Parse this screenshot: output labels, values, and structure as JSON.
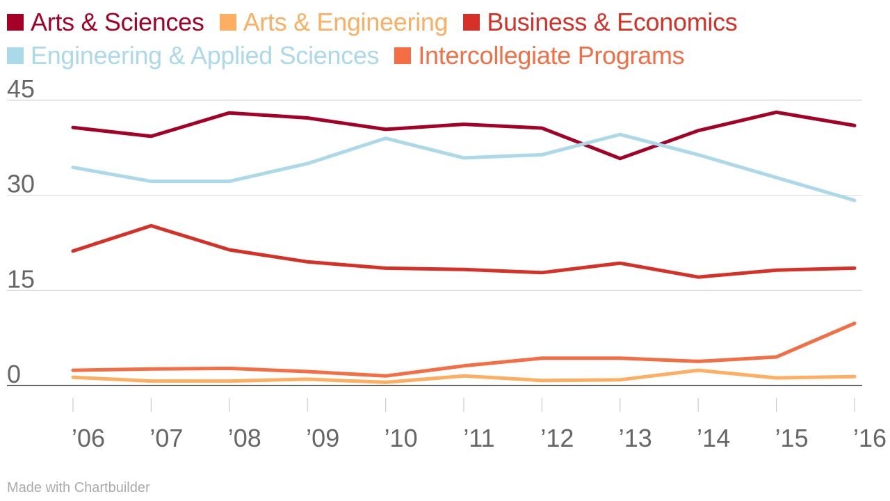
{
  "chart_data": {
    "type": "line",
    "title": "",
    "xlabel": "",
    "ylabel": "",
    "x": [
      "’06",
      "’07",
      "’08",
      "’09",
      "’10",
      "’11",
      "’12",
      "’13",
      "’14",
      "’15",
      "’16"
    ],
    "ylim": [
      0,
      45
    ],
    "yticks": [
      "0",
      "15",
      "30",
      "45"
    ],
    "grid": true,
    "legend_position": "top",
    "series": [
      {
        "name": "Arts & Sciences",
        "color": "#a50026",
        "values": [
          40.7,
          39.3,
          43.0,
          42.2,
          40.4,
          41.2,
          40.6,
          35.8,
          40.2,
          43.1,
          41.0
        ]
      },
      {
        "name": "Arts & Engineering",
        "color": "#fdae61",
        "values": [
          1.3,
          0.7,
          0.7,
          1.0,
          0.5,
          1.5,
          0.8,
          0.9,
          2.4,
          1.2,
          1.4
        ]
      },
      {
        "name": "Business & Economics",
        "color": "#d73027",
        "values": [
          21.2,
          25.2,
          21.4,
          19.5,
          18.5,
          18.3,
          17.8,
          19.3,
          17.1,
          18.2,
          18.5
        ]
      },
      {
        "name": "Engineering & Applied Sciences",
        "color": "#abd9e9",
        "values": [
          34.4,
          32.2,
          32.2,
          35.0,
          39.0,
          35.9,
          36.4,
          39.6,
          36.4,
          32.8,
          29.2
        ]
      },
      {
        "name": "Intercollegiate Programs",
        "color": "#f46d43",
        "values": [
          2.4,
          2.6,
          2.7,
          2.2,
          1.5,
          3.1,
          4.3,
          4.3,
          3.8,
          4.5,
          9.8
        ]
      }
    ]
  },
  "credit": "Made with Chartbuilder"
}
